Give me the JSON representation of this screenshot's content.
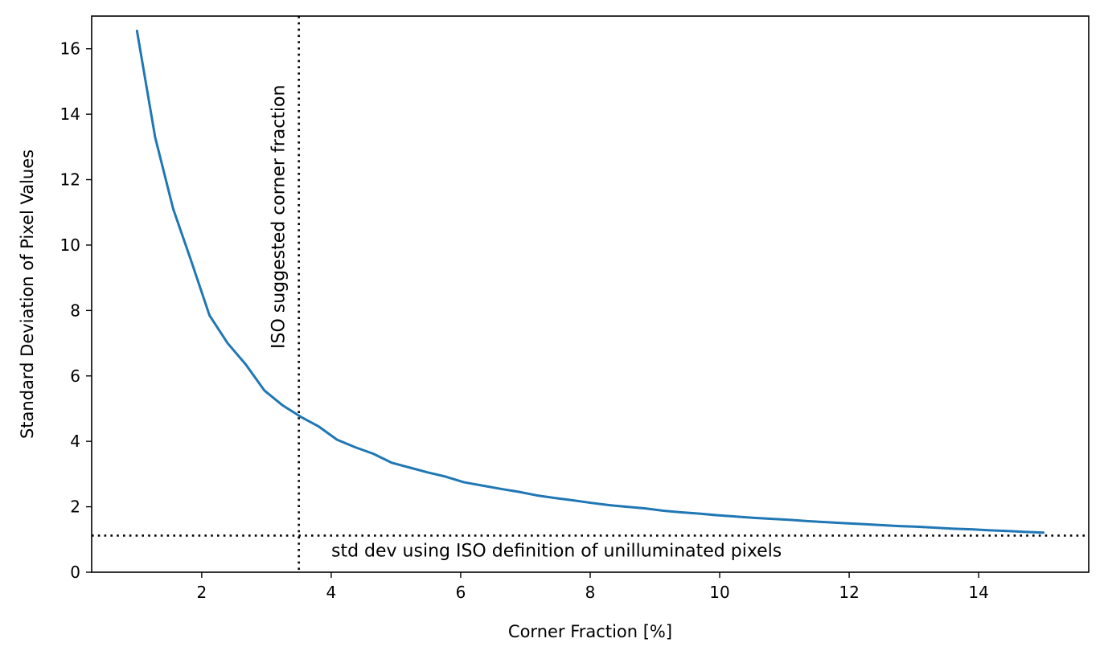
{
  "chart_data": {
    "type": "line",
    "title": "",
    "xlabel": "Corner Fraction [%]",
    "ylabel": "Standard Deviation of Pixel Values",
    "xlim": [
      0.3,
      15.7
    ],
    "ylim": [
      0,
      17
    ],
    "xticks": [
      2,
      4,
      6,
      8,
      10,
      12,
      14
    ],
    "yticks": [
      0,
      2,
      4,
      6,
      8,
      10,
      12,
      14,
      16
    ],
    "grid": false,
    "series": [
      {
        "color": "#1f77b4",
        "x": [
          1.0,
          1.28,
          1.56,
          1.84,
          2.12,
          2.4,
          2.68,
          2.97,
          3.25,
          3.53,
          3.81,
          4.09,
          4.37,
          4.65,
          4.93,
          5.21,
          5.49,
          5.77,
          6.05,
          6.33,
          6.61,
          6.89,
          7.17,
          7.45,
          7.73,
          8.01,
          8.29,
          8.57,
          8.85,
          9.13,
          9.41,
          9.69,
          9.97,
          10.25,
          10.53,
          10.81,
          11.09,
          11.37,
          11.65,
          11.93,
          12.21,
          12.49,
          12.77,
          13.05,
          13.33,
          13.61,
          13.89,
          14.17,
          14.45,
          14.73,
          15.0
        ],
        "y": [
          16.55,
          13.3,
          11.1,
          9.5,
          7.85,
          7.0,
          6.35,
          5.55,
          5.1,
          4.75,
          4.45,
          4.05,
          3.82,
          3.62,
          3.35,
          3.2,
          3.05,
          2.92,
          2.75,
          2.65,
          2.55,
          2.46,
          2.35,
          2.27,
          2.2,
          2.12,
          2.05,
          2.0,
          1.95,
          1.88,
          1.83,
          1.79,
          1.74,
          1.7,
          1.66,
          1.63,
          1.6,
          1.56,
          1.53,
          1.5,
          1.47,
          1.44,
          1.41,
          1.39,
          1.36,
          1.33,
          1.31,
          1.28,
          1.26,
          1.23,
          1.21
        ]
      }
    ],
    "reference_lines": [
      {
        "orientation": "vertical",
        "value": 3.5,
        "style": "dotted",
        "label": "ISO suggested corner fraction"
      },
      {
        "orientation": "horizontal",
        "value": 1.12,
        "style": "dotted",
        "label": "std dev using ISO definition of unilluminated pixels"
      }
    ]
  }
}
